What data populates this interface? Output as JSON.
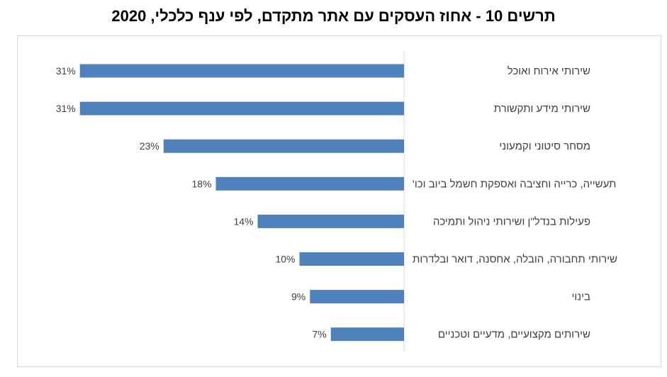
{
  "chart_data": {
    "type": "bar",
    "orientation": "horizontal",
    "title": "תרשים 10 - אחוז העסקים עם אתר מתקדם, לפי ענף כלכלי, 2020",
    "categories": [
      "שירותי אירוח ואוכל",
      "שירותי מידע ותקשורת",
      "מסחר סיטוני וקמעוני",
      "תעשייה, כרייה וחציבה ואספקת חשמל ביוב וכו'",
      "פעילות בנדל\"ן ושירותי ניהול ותמיכה",
      "שירותי תחבורה, הובלה, אחסנה, דואר ובלדרות",
      "בינוי",
      "שירותים מקצועיים, מדעיים וטכניים"
    ],
    "values": [
      31,
      31,
      23,
      18,
      14,
      10,
      9,
      7
    ],
    "value_labels": [
      "31%",
      "31%",
      "23%",
      "18%",
      "14%",
      "10%",
      "9%",
      "7%"
    ],
    "unit": "%",
    "xlim": [
      0,
      35
    ],
    "bars_grow": "right-to-left",
    "grid": false,
    "legend": "none",
    "bar_color": "#4f81bd",
    "axis_color": "#d9d9d9",
    "label_color": "#404040"
  }
}
